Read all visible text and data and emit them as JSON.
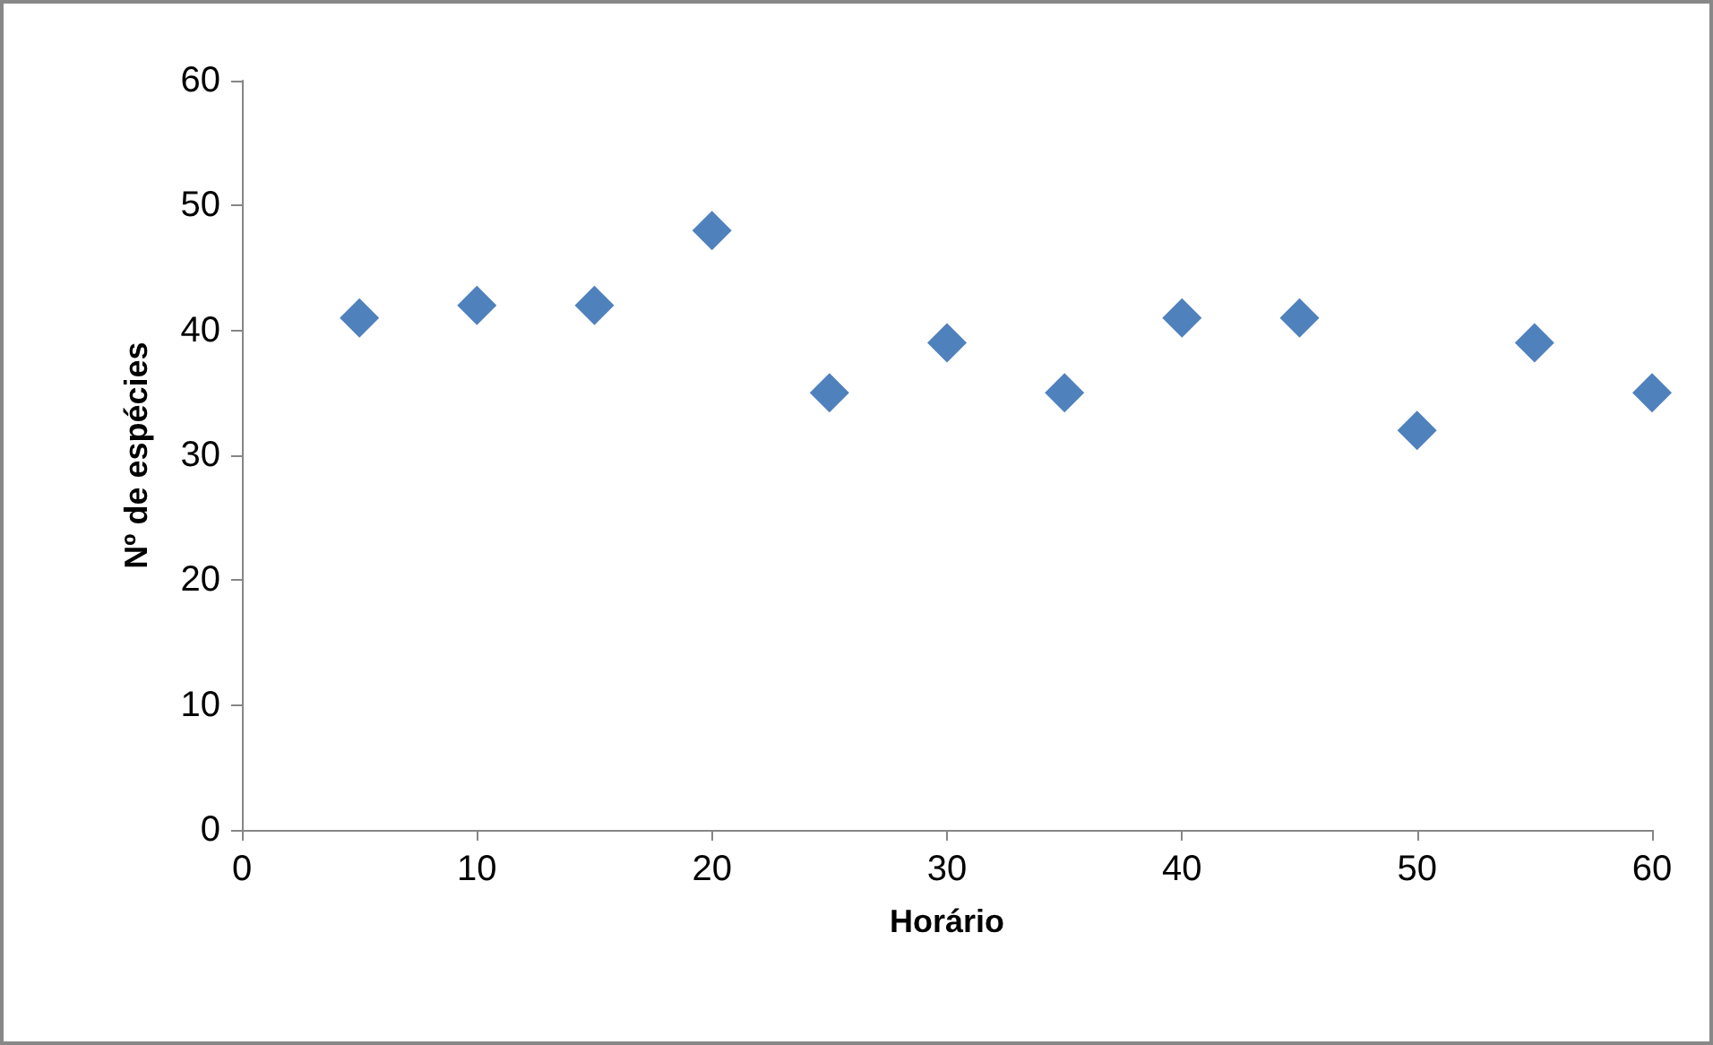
{
  "chart_data": {
    "type": "scatter",
    "xlabel": "Horário",
    "ylabel": "Nº de espécies",
    "x": [
      5,
      10,
      15,
      20,
      25,
      30,
      35,
      40,
      45,
      50,
      55,
      60
    ],
    "values": [
      41,
      42,
      42,
      48,
      35,
      39,
      35,
      41,
      41,
      32,
      39,
      35
    ],
    "color": "#4f81bd",
    "marker": "diamond",
    "xlim": [
      0,
      60
    ],
    "xticks": [
      0,
      10,
      20,
      30,
      40,
      50,
      60
    ],
    "ylim": [
      0,
      60
    ],
    "yticks": [
      0,
      10,
      20,
      30,
      40,
      50,
      60
    ],
    "grid": false
  }
}
